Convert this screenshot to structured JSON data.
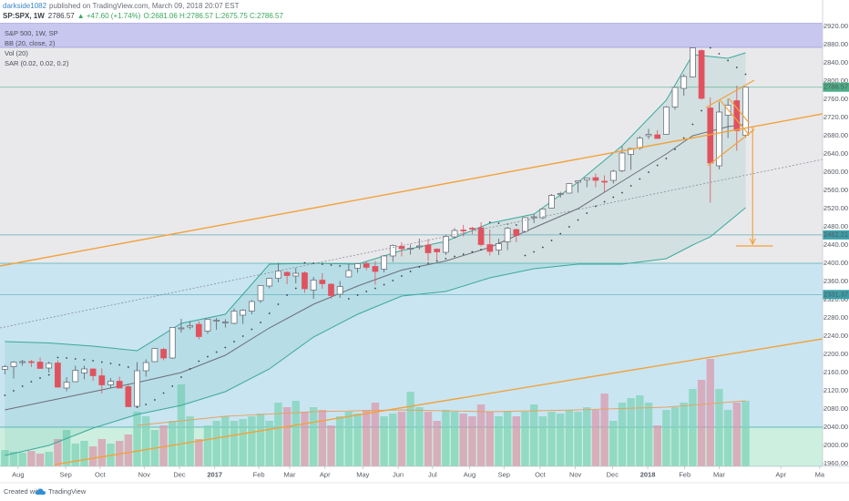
{
  "header": {
    "author": "darkside1082",
    "published": "published on TradingView.com, March 09, 2018 20:07 EST",
    "symbol": "SP:SPX, 1W",
    "price": "2786.57",
    "change": "▲ +47.60 (+1.74%)",
    "ohlc": "O:2681.06 H:2786.57 L:2675.75 C:2786.57"
  },
  "chart_data": {
    "type": "candlestick",
    "legend": [
      "S&P 500, 1W, SP",
      "BB (20, close, 2)",
      "Vol (20)",
      "SAR (0.02, 0.02, 0.2)"
    ],
    "open": [
      2167,
      2173,
      2183,
      2184,
      2183,
      2170,
      2181,
      2126,
      2140,
      2159,
      2168,
      2153,
      2133,
      2141,
      2129,
      2086,
      2164,
      2184,
      2211,
      2192,
      2258,
      2260,
      2266,
      2251,
      2273,
      2270,
      2268,
      2286,
      2295,
      2318,
      2350,
      2367,
      2380,
      2372,
      2379,
      2341,
      2363,
      2354,
      2332,
      2370,
      2389,
      2399,
      2393,
      2387,
      2416,
      2437,
      2433,
      2437,
      2440,
      2431,
      2424,
      2458,
      2473,
      2477,
      2478,
      2441,
      2429,
      2447,
      2474,
      2470,
      2502,
      2500,
      2521,
      2551,
      2554,
      2578,
      2583,
      2588,
      2580,
      2582,
      2603,
      2639,
      2653,
      2680,
      2682,
      2683,
      2743,
      2784,
      2809,
      2867,
      2741,
      2614,
      2725,
      2757,
      2681.06
    ],
    "high": [
      2177,
      2185,
      2188,
      2188,
      2193,
      2184,
      2187,
      2150,
      2175,
      2175,
      2169,
      2169,
      2148,
      2151,
      2133,
      2183,
      2189,
      2214,
      2214,
      2259,
      2278,
      2273,
      2273,
      2277,
      2280,
      2277,
      2301,
      2299,
      2319,
      2351,
      2368,
      2401,
      2382,
      2390,
      2382,
      2370,
      2378,
      2356,
      2361,
      2398,
      2399,
      2404,
      2405,
      2418,
      2441,
      2446,
      2441,
      2454,
      2453,
      2433,
      2463,
      2477,
      2484,
      2480,
      2490,
      2474,
      2454,
      2480,
      2476,
      2500,
      2508,
      2519,
      2552,
      2557,
      2576,
      2582,
      2588,
      2597,
      2593,
      2605,
      2657,
      2652,
      2679,
      2695,
      2692,
      2745,
      2787,
      2815,
      2873,
      2870,
      2764,
      2755,
      2761,
      2790,
      2786.57
    ],
    "low": [
      2156,
      2147,
      2175,
      2172,
      2169,
      2160,
      2127,
      2119,
      2139,
      2145,
      2142,
      2114,
      2126,
      2126,
      2084,
      2084,
      2151,
      2183,
      2187,
      2190,
      2248,
      2255,
      2233,
      2245,
      2254,
      2259,
      2266,
      2267,
      2288,
      2313,
      2345,
      2358,
      2354,
      2356,
      2335,
      2322,
      2344,
      2322,
      2324,
      2369,
      2379,
      2385,
      2353,
      2380,
      2403,
      2415,
      2419,
      2430,
      2405,
      2407,
      2418,
      2454,
      2459,
      2464,
      2437,
      2417,
      2418,
      2429,
      2446,
      2467,
      2488,
      2497,
      2520,
      2544,
      2553,
      2555,
      2567,
      2567,
      2557,
      2575,
      2600,
      2605,
      2649,
      2673,
      2673,
      2682,
      2737,
      2768,
      2808,
      2759,
      2533,
      2606,
      2675,
      2647,
      2675.75
    ],
    "close": [
      2173,
      2183,
      2184,
      2183,
      2169,
      2180,
      2128,
      2139,
      2165,
      2168,
      2153,
      2133,
      2141,
      2126,
      2085,
      2164,
      2182,
      2213,
      2192,
      2259,
      2258,
      2263,
      2239,
      2277,
      2275,
      2271,
      2295,
      2297,
      2316,
      2351,
      2367,
      2383,
      2373,
      2378,
      2344,
      2363,
      2355,
      2329,
      2349,
      2384,
      2399,
      2391,
      2382,
      2416,
      2439,
      2432,
      2433,
      2438,
      2423,
      2425,
      2459,
      2472,
      2472,
      2476,
      2441,
      2426,
      2443,
      2477,
      2461,
      2500,
      2502,
      2519,
      2549,
      2553,
      2575,
      2581,
      2587,
      2582,
      2579,
      2602,
      2642,
      2652,
      2675,
      2683,
      2674,
      2743,
      2786,
      2810,
      2873,
      2762,
      2620,
      2732,
      2747,
      2691,
      2786.57
    ],
    "up_color": "#ffffff",
    "up_border": "#5d606b",
    "down_color": "#e0525f",
    "sar": [
      2110,
      2120,
      2130,
      2140,
      2148,
      2155,
      2193,
      2192,
      2190,
      2188,
      2186,
      2183,
      2180,
      2177,
      2172,
      2084,
      2090,
      2100,
      2115,
      2130,
      2150,
      2168,
      2185,
      2195,
      2205,
      2215,
      2228,
      2240,
      2255,
      2270,
      2290,
      2310,
      2330,
      2345,
      2401,
      2400,
      2398,
      2396,
      2394,
      2322,
      2330,
      2338,
      2345,
      2353,
      2362,
      2372,
      2382,
      2392,
      2400,
      2405,
      2410,
      2415,
      2420,
      2425,
      2430,
      2490,
      2488,
      2486,
      2484,
      2417,
      2425,
      2435,
      2450,
      2465,
      2480,
      2495,
      2510,
      2525,
      2535,
      2545,
      2555,
      2570,
      2585,
      2600,
      2615,
      2630,
      2650,
      2675,
      2705,
      2735,
      2873,
      2860,
      2845,
      2830,
      2815
    ],
    "sar_color": "#3b3e45",
    "volume": [
      18,
      16,
      15,
      17,
      14,
      16,
      30,
      40,
      25,
      28,
      22,
      30,
      25,
      28,
      35,
      60,
      55,
      40,
      45,
      50,
      90,
      55,
      30,
      45,
      50,
      55,
      50,
      52,
      55,
      58,
      50,
      70,
      65,
      72,
      60,
      65,
      62,
      45,
      55,
      60,
      58,
      62,
      70,
      55,
      58,
      60,
      82,
      65,
      60,
      50,
      62,
      60,
      58,
      55,
      68,
      60,
      55,
      60,
      55,
      60,
      68,
      55,
      60,
      58,
      62,
      60,
      65,
      62,
      80,
      50,
      70,
      75,
      78,
      70,
      45,
      62,
      65,
      70,
      85,
      95,
      118,
      85,
      62,
      70,
      72
    ],
    "volume_colors": {
      "up": "#7fd3b8",
      "down": "#d99aae"
    },
    "vol_ma": {
      "x": [
        15,
        25,
        35,
        45,
        55,
        65,
        75,
        84
      ],
      "values": [
        45,
        55,
        60,
        62,
        60,
        62,
        65,
        72
      ],
      "color": "#e8a05c"
    },
    "bb": {
      "x": [
        0,
        5,
        10,
        15,
        20,
        25,
        30,
        35,
        40,
        45,
        50,
        55,
        60,
        65,
        70,
        75,
        78,
        80,
        82,
        84
      ],
      "basis": [
        2078,
        2098,
        2118,
        2138,
        2160,
        2198,
        2258,
        2310,
        2350,
        2385,
        2405,
        2435,
        2478,
        2520,
        2580,
        2640,
        2680,
        2690,
        2700,
        2705
      ],
      "upper": [
        2228,
        2225,
        2218,
        2208,
        2268,
        2288,
        2398,
        2400,
        2398,
        2428,
        2448,
        2488,
        2508,
        2578,
        2658,
        2758,
        2858,
        2854,
        2850,
        2862
      ],
      "lower": [
        1978,
        2000,
        2038,
        2068,
        2088,
        2118,
        2168,
        2238,
        2288,
        2328,
        2338,
        2368,
        2388,
        2398,
        2398,
        2410,
        2440,
        2458,
        2490,
        2522
      ],
      "band_color": "#3aa99b",
      "basis_color": "#6b6e78"
    },
    "zones": [
      {
        "from": 2874,
        "to": 2928,
        "color": "#c8c7f0",
        "border": "#9b98d8"
      },
      {
        "from": 2040,
        "to": 2400,
        "color": "#c9e5f2",
        "border": "#4fb0b0"
      },
      {
        "from": 1954,
        "to": 2040,
        "color": "#ccefdf",
        "border": "#4fb0b0"
      }
    ],
    "price_lines": [
      {
        "value": 2786.57,
        "color": "#4cae86"
      },
      {
        "value": 2462.21,
        "color": "#3d9fa8"
      },
      {
        "value": 2331.37,
        "color": "#3d9fa8"
      }
    ],
    "trendlines": [
      {
        "x": [
          -0.55,
          92.73
        ],
        "y": [
          2394,
          2728
        ],
        "color": "#f2a23a",
        "width": 1.4,
        "dashed": false,
        "arrow": false
      },
      {
        "x": [
          5.65,
          92.73
        ],
        "y": [
          1958,
          2234
        ],
        "color": "#f2a23a",
        "width": 1.4,
        "dashed": false,
        "arrow": false
      },
      {
        "x": [
          -0.55,
          92.73
        ],
        "y": [
          2258,
          2628
        ],
        "color": "#8a8d96",
        "width": 0.8,
        "dashed": true,
        "arrow": false
      },
      {
        "x": [
          79.5,
          85.0
        ],
        "y": [
          2742,
          2802
        ],
        "color": "#f2a23a",
        "width": 1.2,
        "dashed": false,
        "arrow": false
      },
      {
        "x": [
          79.7,
          85.0
        ],
        "y": [
          2614,
          2694
        ],
        "color": "#f2a23a",
        "width": 1.2,
        "dashed": false,
        "arrow": false
      },
      {
        "x": [
          81.1,
          84.4
        ],
        "y": [
          2758,
          2682
        ],
        "color": "#f2a23a",
        "width": 1.2,
        "dashed": false,
        "arrow": false
      },
      {
        "x": [
          82.1,
          84.4
        ],
        "y": [
          2762,
          2708
        ],
        "color": "#f2a23a",
        "width": 1.2,
        "dashed": false,
        "arrow": false
      },
      {
        "x": [
          84.8,
          84.8
        ],
        "y": [
          2698,
          2442
        ],
        "color": "#f2a23a",
        "width": 1.2,
        "dashed": false,
        "arrow": true
      },
      {
        "x": [
          82.9,
          87.1
        ],
        "y": [
          2438,
          2438
        ],
        "color": "#f2a23a",
        "width": 1.2,
        "dashed": false,
        "arrow": false
      }
    ],
    "xlim": [
      -0.55,
      92.73
    ],
    "xticks": [
      {
        "value": 1.5,
        "label": "Aug"
      },
      {
        "value": 6.9,
        "label": "Sep"
      },
      {
        "value": 10.8,
        "label": "Oct"
      },
      {
        "value": 15.8,
        "label": "Nov"
      },
      {
        "value": 19.8,
        "label": "Dec"
      },
      {
        "value": 23.8,
        "label": "2017"
      },
      {
        "value": 28.8,
        "label": "Feb"
      },
      {
        "value": 32.3,
        "label": "Mar"
      },
      {
        "value": 36.3,
        "label": "Apr"
      },
      {
        "value": 40.6,
        "label": "May"
      },
      {
        "value": 44.6,
        "label": "Jun"
      },
      {
        "value": 48.5,
        "label": "Jul"
      },
      {
        "value": 52.7,
        "label": "Aug"
      },
      {
        "value": 56.6,
        "label": "Sep"
      },
      {
        "value": 60.7,
        "label": "Oct"
      },
      {
        "value": 64.7,
        "label": "Nov"
      },
      {
        "value": 68.9,
        "label": "Dec"
      },
      {
        "value": 72.9,
        "label": "2018"
      },
      {
        "value": 77.1,
        "label": "Feb"
      },
      {
        "value": 81.0,
        "label": "Mar"
      },
      {
        "value": 88.0,
        "label": "Apr"
      },
      {
        "value": 92.4,
        "label": "Ma"
      }
    ],
    "ylim": [
      1954,
      2928
    ],
    "yticks": [
      {
        "value": 1960,
        "label": "1960.00"
      },
      {
        "value": 2000,
        "label": "2000.00"
      },
      {
        "value": 2040,
        "label": "2040.00"
      },
      {
        "value": 2080,
        "label": "2080.00"
      },
      {
        "value": 2120,
        "label": "2120.00"
      },
      {
        "value": 2160,
        "label": "2160.00"
      },
      {
        "value": 2200,
        "label": "2200.00"
      },
      {
        "value": 2240,
        "label": "2240.00"
      },
      {
        "value": 2280,
        "label": "2280.00"
      },
      {
        "value": 2320,
        "label": "2320.00"
      },
      {
        "value": 2360,
        "label": "2360.00"
      },
      {
        "value": 2400,
        "label": "2400.00"
      },
      {
        "value": 2440,
        "label": "2440.00"
      },
      {
        "value": 2480,
        "label": "2480.00"
      },
      {
        "value": 2520,
        "label": "2520.00"
      },
      {
        "value": 2560,
        "label": "2560.00"
      },
      {
        "value": 2600,
        "label": "2600.00"
      },
      {
        "value": 2640,
        "label": "2640.00"
      },
      {
        "value": 2680,
        "label": "2680.00"
      },
      {
        "value": 2720,
        "label": "2720.00"
      },
      {
        "value": 2760,
        "label": "2760.00"
      },
      {
        "value": 2800,
        "label": "2800.00"
      },
      {
        "value": 2840,
        "label": "2840.00"
      },
      {
        "value": 2880,
        "label": "2880.00"
      },
      {
        "value": 2920,
        "label": "2920.00"
      }
    ]
  },
  "footer": {
    "text": "Created with",
    "brand": "TradingView"
  }
}
